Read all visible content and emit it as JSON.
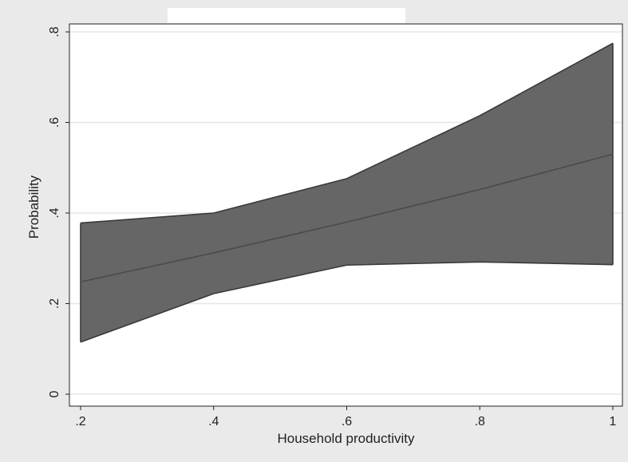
{
  "chart_data": {
    "type": "area",
    "title": "",
    "xlabel": "Household productivity",
    "ylabel": "Probability",
    "xlim": [
      0.2,
      1.0
    ],
    "ylim": [
      0,
      0.8
    ],
    "x_ticks": [
      0.2,
      0.4,
      0.6,
      0.8,
      1.0
    ],
    "x_tick_labels": [
      ".2",
      ".4",
      ".6",
      ".8",
      "1"
    ],
    "y_ticks": [
      0,
      0.2,
      0.4,
      0.6,
      0.8
    ],
    "y_tick_labels": [
      "0",
      ".2",
      ".4",
      ".6",
      ".8"
    ],
    "grid": "horizontal",
    "legend": "none",
    "x": [
      0.2,
      0.4,
      0.6,
      0.8,
      1.0
    ],
    "series": [
      {
        "role": "estimate",
        "values": [
          0.248,
          0.312,
          0.38,
          0.452,
          0.53
        ]
      },
      {
        "role": "upper",
        "values": [
          0.378,
          0.4,
          0.476,
          0.615,
          0.775
        ]
      },
      {
        "role": "lower",
        "values": [
          0.115,
          0.222,
          0.285,
          0.292,
          0.286
        ]
      }
    ],
    "colors": {
      "band_fill": "#666666",
      "band_edge": "#3a3a3a",
      "line": "#4a4a4a",
      "plot_background": "#ffffff",
      "outer_background": "#eaeaea",
      "grid": "#e6e6e6"
    }
  }
}
